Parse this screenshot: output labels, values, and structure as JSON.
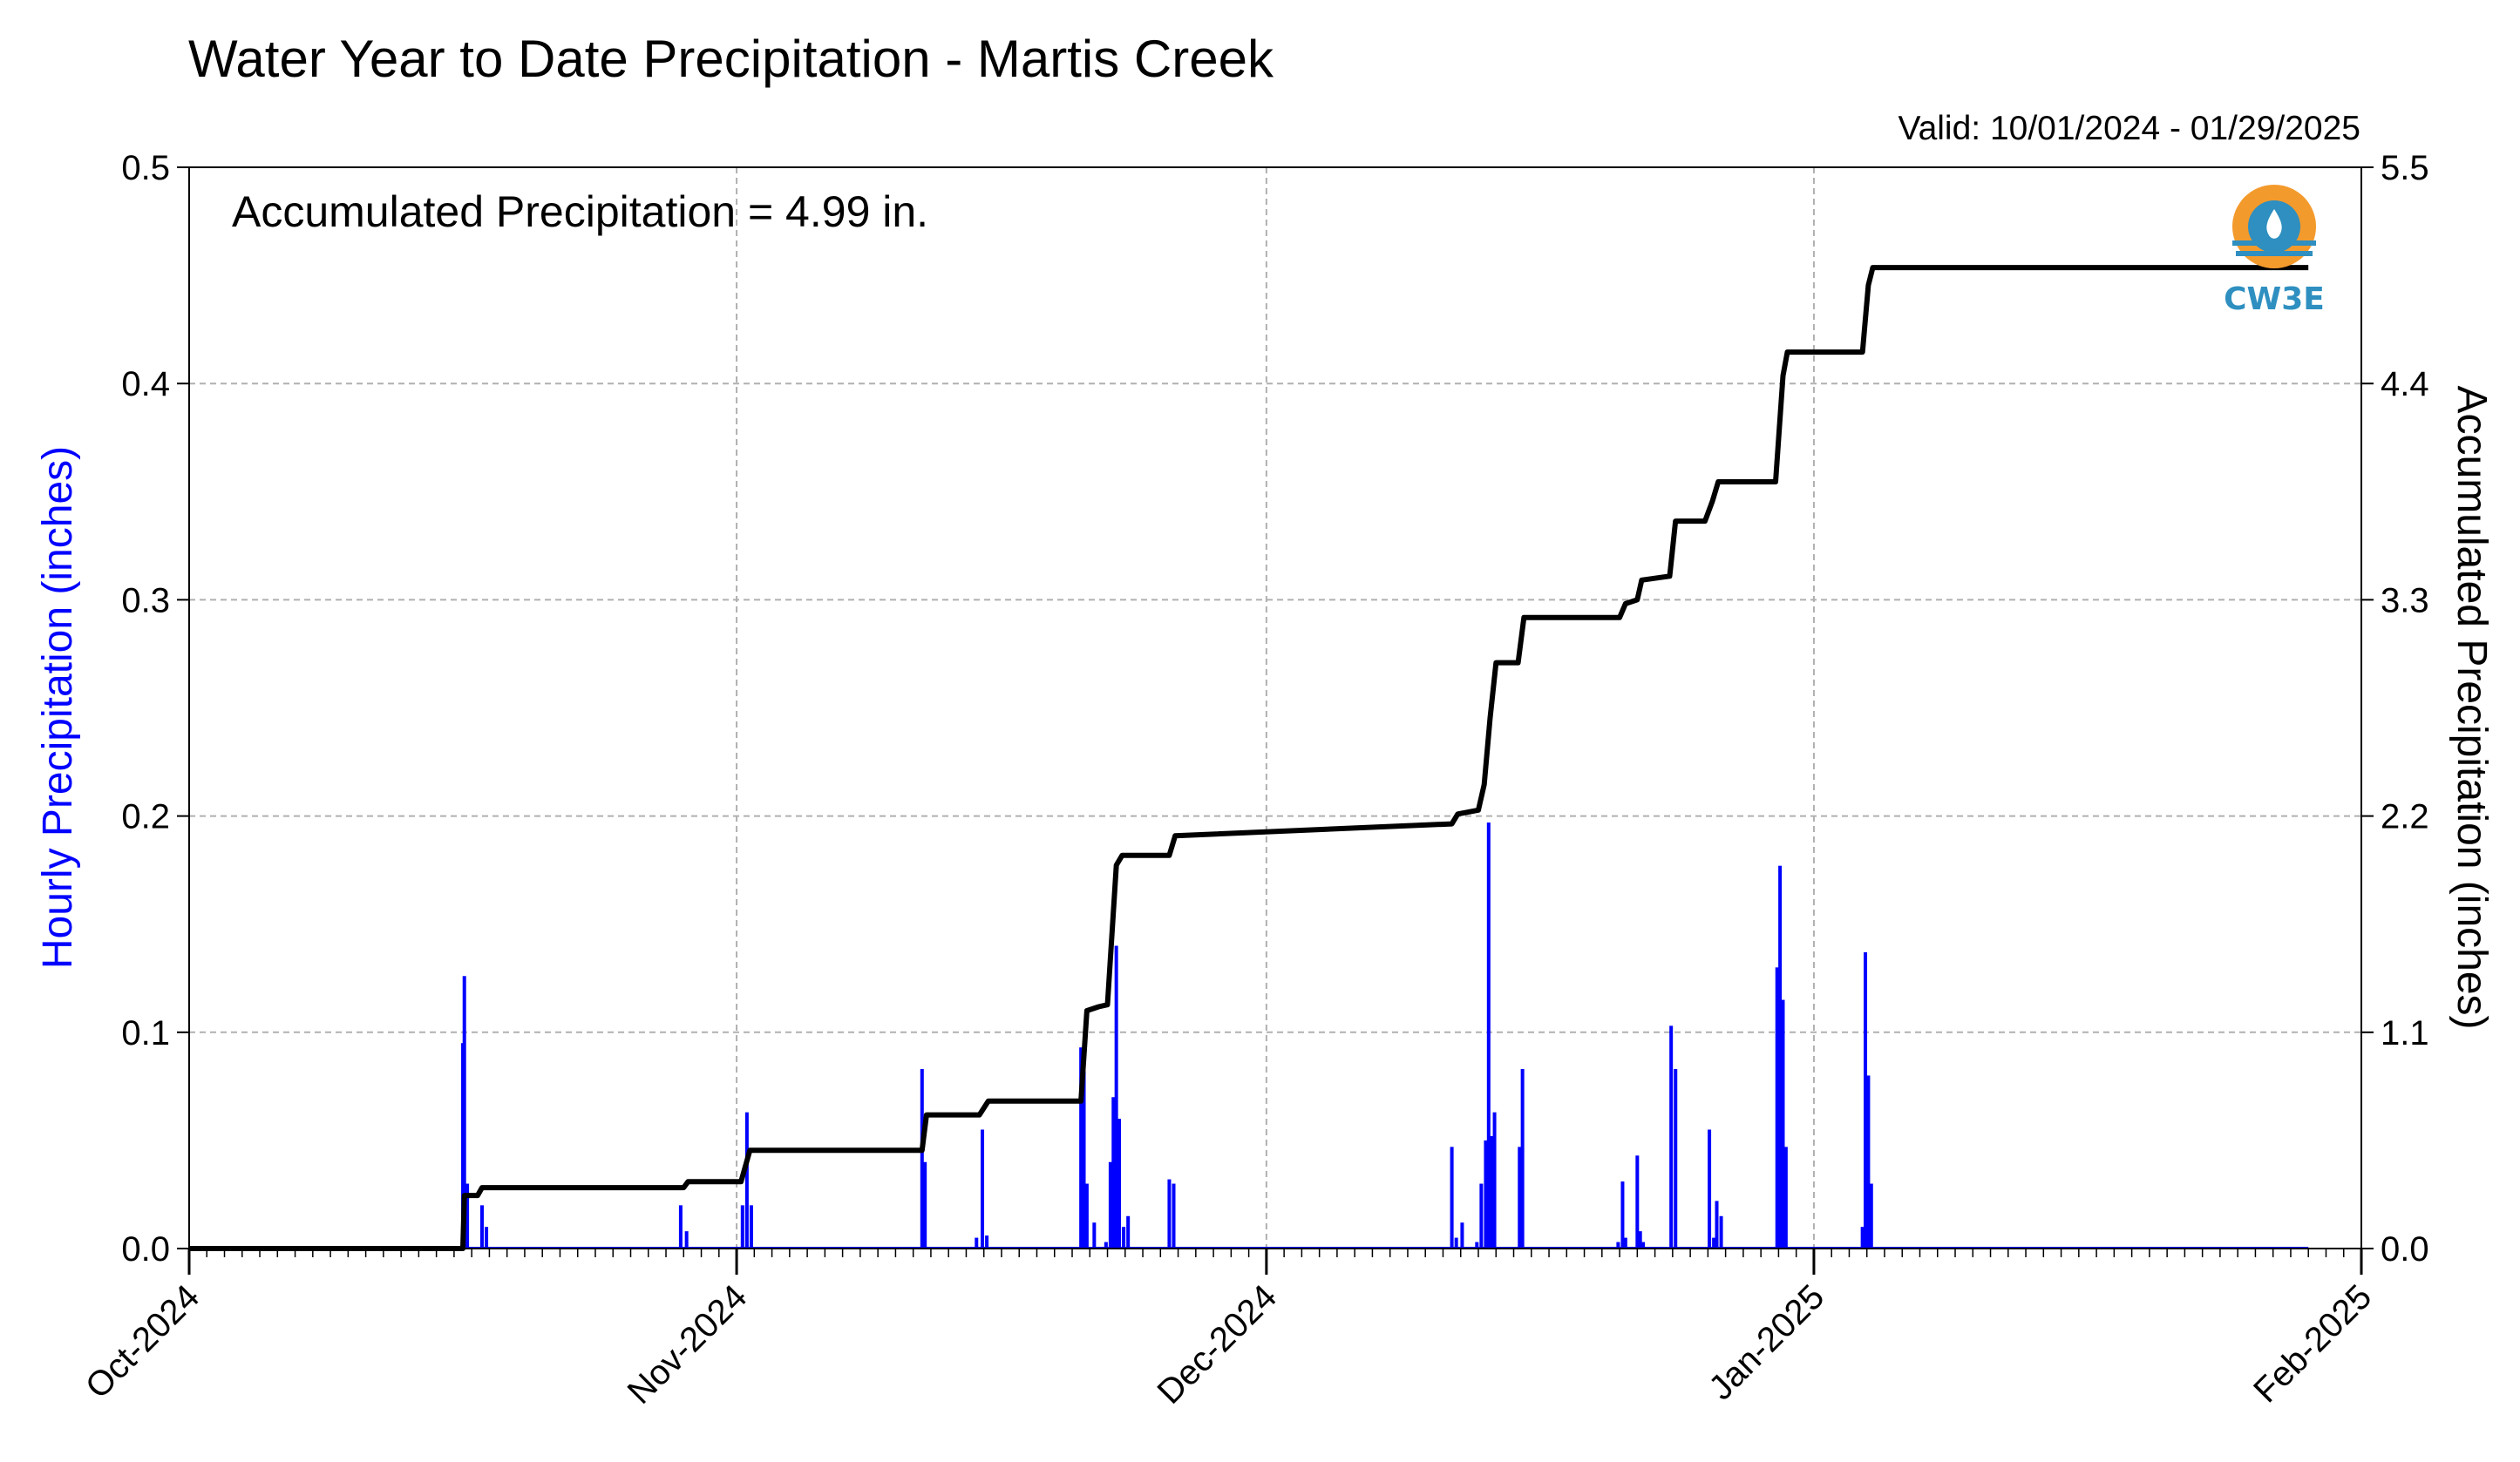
{
  "chart_data": {
    "type": "bar+line",
    "title": "Water Year to Date Precipitation - Martis Creek",
    "subtitle": "Valid: 10/01/2024 - 01/29/2025",
    "annotation": "Accumulated Precipitation = 4.99 in.",
    "logo_text": "CW3E",
    "ylabel_left": "Hourly Precipitation (inches)",
    "ylabel_right": "Accumulated Precipitation (inches)",
    "xlim": [
      "2024-10-01",
      "2025-02-01"
    ],
    "ylim_left": [
      0,
      0.5
    ],
    "ylim_right": [
      0,
      5.5
    ],
    "x_tick_labels": [
      "Oct-2024",
      "Nov-2024",
      "Dec-2024",
      "Jan-2025",
      "Feb-2025"
    ],
    "x_tick_dates": [
      "2024-10-01",
      "2024-11-01",
      "2024-12-01",
      "2025-01-01",
      "2025-02-01"
    ],
    "y_left_ticks": [
      "0.0",
      "0.1",
      "0.2",
      "0.3",
      "0.4",
      "0.5"
    ],
    "y_right_ticks": [
      "0.0",
      "1.1",
      "2.2",
      "3.3",
      "4.4",
      "5.5"
    ],
    "grid": true,
    "colors": {
      "bars": "#0000ff",
      "line": "#000000",
      "grid": "#b0b0b0",
      "logo_orange": "#f39a2c",
      "logo_blue": "#2e8fc0"
    },
    "series": [
      {
        "name": "Hourly Precipitation",
        "type": "bar",
        "data": [
          [
            "2024-10-16T12",
            0.095
          ],
          [
            "2024-10-16T14",
            0.126
          ],
          [
            "2024-10-16T18",
            0.03
          ],
          [
            "2024-10-17T14",
            0.02
          ],
          [
            "2024-10-17T20",
            0.01
          ],
          [
            "2024-10-28T20",
            0.02
          ],
          [
            "2024-10-29T04",
            0.008
          ],
          [
            "2024-11-01T08",
            0.02
          ],
          [
            "2024-11-01T14",
            0.063
          ],
          [
            "2024-11-01T20",
            0.02
          ],
          [
            "2024-11-11T12",
            0.083
          ],
          [
            "2024-11-11T16",
            0.04
          ],
          [
            "2024-11-14T14",
            0.005
          ],
          [
            "2024-11-14T22",
            0.055
          ],
          [
            "2024-11-15T04",
            0.006
          ],
          [
            "2024-11-20T12",
            0.093
          ],
          [
            "2024-11-20T16",
            0.082
          ],
          [
            "2024-11-20T20",
            0.03
          ],
          [
            "2024-11-21T06",
            0.012
          ],
          [
            "2024-11-21T22",
            0.003
          ],
          [
            "2024-11-22T04",
            0.04
          ],
          [
            "2024-11-22T08",
            0.07
          ],
          [
            "2024-11-22T12",
            0.14
          ],
          [
            "2024-11-22T16",
            0.06
          ],
          [
            "2024-11-22T22",
            0.01
          ],
          [
            "2024-11-23T04",
            0.015
          ],
          [
            "2024-11-25T12",
            0.032
          ],
          [
            "2024-11-25T18",
            0.03
          ],
          [
            "2024-12-11T12",
            0.047
          ],
          [
            "2024-12-11T18",
            0.005
          ],
          [
            "2024-12-12T02",
            0.012
          ],
          [
            "2024-12-12T22",
            0.003
          ],
          [
            "2024-12-13T04",
            0.03
          ],
          [
            "2024-12-13T10",
            0.05
          ],
          [
            "2024-12-13T14",
            0.197
          ],
          [
            "2024-12-13T18",
            0.052
          ],
          [
            "2024-12-13T22",
            0.063
          ],
          [
            "2024-12-15T08",
            0.047
          ],
          [
            "2024-12-15T12",
            0.083
          ],
          [
            "2024-12-20T22",
            0.003
          ],
          [
            "2024-12-21T04",
            0.031
          ],
          [
            "2024-12-21T08",
            0.005
          ],
          [
            "2024-12-22T00",
            0.043
          ],
          [
            "2024-12-22T04",
            0.008
          ],
          [
            "2024-12-22T08",
            0.003
          ],
          [
            "2024-12-23T22",
            0.103
          ],
          [
            "2024-12-24T04",
            0.083
          ],
          [
            "2024-12-26T02",
            0.055
          ],
          [
            "2024-12-26T08",
            0.005
          ],
          [
            "2024-12-26T12",
            0.022
          ],
          [
            "2024-12-26T18",
            0.015
          ],
          [
            "2024-12-29T22",
            0.13
          ],
          [
            "2024-12-30T02",
            0.177
          ],
          [
            "2024-12-30T06",
            0.115
          ],
          [
            "2024-12-30T10",
            0.047
          ],
          [
            "2025-01-03T18",
            0.01
          ],
          [
            "2025-01-03T22",
            0.137
          ],
          [
            "2025-01-04T02",
            0.08
          ],
          [
            "2025-01-04T06",
            0.03
          ]
        ]
      },
      {
        "name": "Accumulated Precipitation",
        "type": "line",
        "data": [
          [
            "2024-10-01T00",
            0.0
          ],
          [
            "2024-10-16T12",
            0.0
          ],
          [
            "2024-10-16T14",
            0.27
          ],
          [
            "2024-10-17T08",
            0.27
          ],
          [
            "2024-10-17T14",
            0.31
          ],
          [
            "2024-10-29T00",
            0.31
          ],
          [
            "2024-10-29T06",
            0.34
          ],
          [
            "2024-11-01T06",
            0.34
          ],
          [
            "2024-11-01T18",
            0.5
          ],
          [
            "2024-11-11T12",
            0.5
          ],
          [
            "2024-11-11T18",
            0.68
          ],
          [
            "2024-11-14T18",
            0.68
          ],
          [
            "2024-11-15T06",
            0.75
          ],
          [
            "2024-11-20T12",
            0.75
          ],
          [
            "2024-11-20T20",
            1.21
          ],
          [
            "2024-11-21T12",
            1.23
          ],
          [
            "2024-11-22T00",
            1.24
          ],
          [
            "2024-11-22T12",
            1.95
          ],
          [
            "2024-11-22T20",
            2.0
          ],
          [
            "2024-11-25T12",
            2.0
          ],
          [
            "2024-11-25T20",
            2.1
          ],
          [
            "2024-12-11T12",
            2.16
          ],
          [
            "2024-12-11T20",
            2.21
          ],
          [
            "2024-12-13T00",
            2.23
          ],
          [
            "2024-12-13T08",
            2.36
          ],
          [
            "2024-12-13T16",
            2.7
          ],
          [
            "2024-12-14T00",
            2.98
          ],
          [
            "2024-12-15T06",
            2.98
          ],
          [
            "2024-12-15T14",
            3.21
          ],
          [
            "2024-12-21T00",
            3.21
          ],
          [
            "2024-12-21T08",
            3.28
          ],
          [
            "2024-12-22T00",
            3.3
          ],
          [
            "2024-12-22T06",
            3.4
          ],
          [
            "2024-12-23T20",
            3.42
          ],
          [
            "2024-12-24T04",
            3.7
          ],
          [
            "2024-12-25T20",
            3.7
          ],
          [
            "2024-12-26T06",
            3.8
          ],
          [
            "2024-12-26T14",
            3.9
          ],
          [
            "2024-12-29T20",
            3.9
          ],
          [
            "2024-12-30T06",
            4.44
          ],
          [
            "2024-12-30T12",
            4.56
          ],
          [
            "2025-01-03T18",
            4.56
          ],
          [
            "2025-01-04T02",
            4.9
          ],
          [
            "2025-01-04T08",
            4.99
          ],
          [
            "2025-01-29T00",
            4.99
          ]
        ]
      }
    ]
  }
}
